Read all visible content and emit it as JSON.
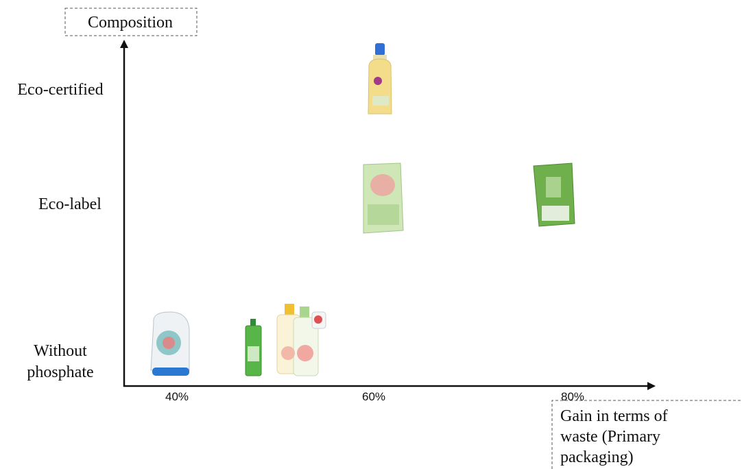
{
  "y_axis": {
    "title": "Composition",
    "labels": [
      {
        "lines": [
          "Eco-certified"
        ]
      },
      {
        "lines": [
          "Eco-label"
        ]
      },
      {
        "lines": [
          "Without",
          "phosphate"
        ]
      }
    ]
  },
  "x_axis": {
    "labels": [
      "40%",
      "60%",
      "80%"
    ],
    "title": {
      "lines": [
        "Gain in terms of",
        "waste (Primary",
        "packaging)"
      ]
    }
  }
}
